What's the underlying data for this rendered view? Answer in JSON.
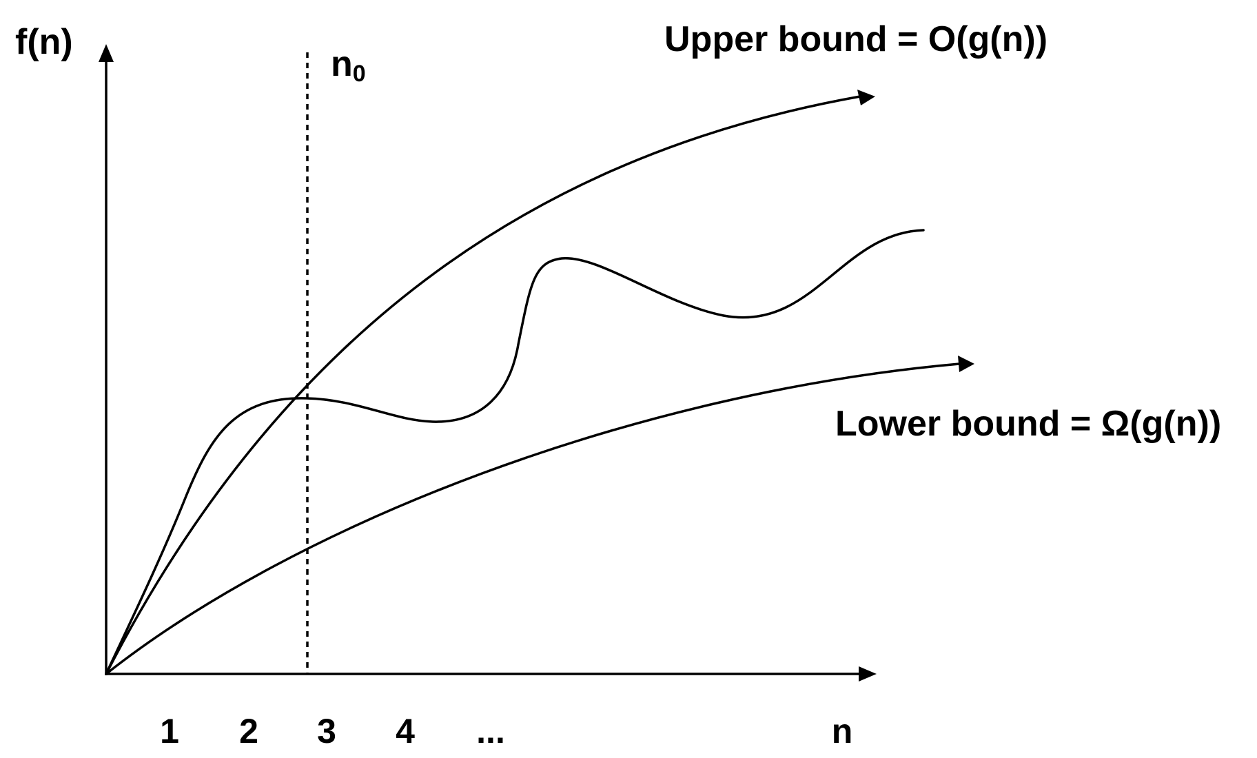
{
  "diagram": {
    "y_axis_label": "f(n)",
    "x_axis_label": "n",
    "threshold_label_base": "n",
    "threshold_label_sub": "0",
    "upper_bound_label": "Upper bound = O(g(n))",
    "lower_bound_label": "Lower bound = Ω(g(n))",
    "x_ticks": [
      "1",
      "2",
      "3",
      "4",
      "..."
    ]
  }
}
